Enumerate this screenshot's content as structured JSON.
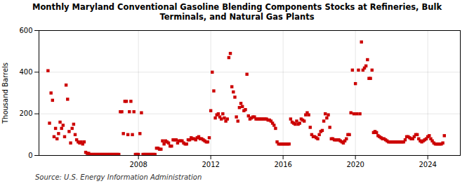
{
  "chart_data": {
    "type": "scatter",
    "title": "Monthly Maryland Conventional Gasoline Blending Components Stocks at Refineries, Bulk\nTerminals, and Natural Gas Plants",
    "ylabel": "Thousand Barrels",
    "source": "Source: U.S. Energy Information Administration",
    "color": "#cc0000",
    "marker": "square",
    "grid": true,
    "xlim": [
      2002.5,
      2025.8
    ],
    "xticks": [
      2008,
      2012,
      2016,
      2020,
      2024
    ],
    "ylim": [
      0,
      600
    ],
    "yticks": [
      0,
      200,
      400,
      600
    ],
    "x": [
      2003.0,
      2003.083,
      2003.167,
      2003.25,
      2003.333,
      2003.417,
      2003.5,
      2003.583,
      2003.667,
      2003.75,
      2003.833,
      2003.917,
      2004.0,
      2004.083,
      2004.167,
      2004.25,
      2004.333,
      2004.417,
      2004.5,
      2004.583,
      2004.667,
      2004.75,
      2004.833,
      2004.917,
      2005.0,
      2005.083,
      2005.167,
      2005.25,
      2005.333,
      2005.417,
      2005.5,
      2005.583,
      2005.667,
      2005.75,
      2005.833,
      2005.917,
      2006.0,
      2006.083,
      2006.167,
      2006.25,
      2006.333,
      2006.417,
      2006.5,
      2006.583,
      2006.667,
      2006.75,
      2006.833,
      2006.917,
      2007.0,
      2007.083,
      2007.167,
      2007.25,
      2007.333,
      2007.417,
      2007.5,
      2007.583,
      2007.667,
      2007.75,
      2007.833,
      2007.917,
      2008.0,
      2008.083,
      2008.167,
      2008.25,
      2008.333,
      2008.417,
      2008.5,
      2008.583,
      2008.667,
      2008.75,
      2008.833,
      2008.917,
      2009.0,
      2009.083,
      2009.167,
      2009.25,
      2009.333,
      2009.417,
      2009.5,
      2009.583,
      2009.667,
      2009.75,
      2009.833,
      2009.917,
      2010.0,
      2010.083,
      2010.167,
      2010.25,
      2010.333,
      2010.417,
      2010.5,
      2010.583,
      2010.667,
      2010.75,
      2010.833,
      2010.917,
      2011.0,
      2011.083,
      2011.167,
      2011.25,
      2011.333,
      2011.417,
      2011.5,
      2011.583,
      2011.667,
      2011.75,
      2011.833,
      2011.917,
      2012.0,
      2012.083,
      2012.167,
      2012.25,
      2012.333,
      2012.417,
      2012.5,
      2012.583,
      2012.667,
      2012.75,
      2012.833,
      2012.917,
      2013.0,
      2013.083,
      2013.167,
      2013.25,
      2013.333,
      2013.417,
      2013.5,
      2013.583,
      2013.667,
      2013.75,
      2013.833,
      2013.917,
      2014.0,
      2014.083,
      2014.167,
      2014.25,
      2014.333,
      2014.417,
      2014.5,
      2014.583,
      2014.667,
      2014.75,
      2014.833,
      2014.917,
      2015.0,
      2015.083,
      2015.167,
      2015.25,
      2015.333,
      2015.417,
      2015.5,
      2015.583,
      2015.667,
      2015.75,
      2015.833,
      2015.917,
      2016.0,
      2016.083,
      2016.167,
      2016.25,
      2016.333,
      2016.417,
      2016.5,
      2016.583,
      2016.667,
      2016.75,
      2016.833,
      2016.917,
      2017.0,
      2017.083,
      2017.167,
      2017.25,
      2017.333,
      2017.417,
      2017.5,
      2017.583,
      2017.667,
      2017.75,
      2017.833,
      2017.917,
      2018.0,
      2018.083,
      2018.167,
      2018.25,
      2018.333,
      2018.417,
      2018.5,
      2018.583,
      2018.667,
      2018.75,
      2018.833,
      2018.917,
      2019.0,
      2019.083,
      2019.167,
      2019.25,
      2019.333,
      2019.417,
      2019.5,
      2019.583,
      2019.667,
      2019.75,
      2019.833,
      2019.917,
      2020.0,
      2020.083,
      2020.167,
      2020.25,
      2020.333,
      2020.417,
      2020.5,
      2020.583,
      2020.667,
      2020.75,
      2020.833,
      2020.917,
      2021.0,
      2021.083,
      2021.167,
      2021.25,
      2021.333,
      2021.417,
      2021.5,
      2021.583,
      2021.667,
      2021.75,
      2021.833,
      2021.917,
      2022.0,
      2022.083,
      2022.167,
      2022.25,
      2022.333,
      2022.417,
      2022.5,
      2022.583,
      2022.667,
      2022.75,
      2022.833,
      2022.917,
      2023.0,
      2023.083,
      2023.167,
      2023.25,
      2023.333,
      2023.417,
      2023.5,
      2023.583,
      2023.667,
      2023.75,
      2023.833,
      2023.917,
      2024.0,
      2024.083,
      2024.167,
      2024.25,
      2024.333,
      2024.417,
      2024.5,
      2024.583,
      2024.667,
      2024.75,
      2024.833,
      2024.917
    ],
    "values": [
      407,
      155,
      300,
      265,
      90,
      130,
      80,
      105,
      160,
      130,
      145,
      90,
      338,
      270,
      115,
      60,
      130,
      150,
      100,
      75,
      65,
      60,
      65,
      55,
      65,
      15,
      10,
      10,
      5,
      5,
      5,
      5,
      5,
      5,
      5,
      5,
      5,
      5,
      5,
      5,
      5,
      5,
      5,
      5,
      5,
      5,
      5,
      5,
      210,
      210,
      105,
      260,
      260,
      100,
      210,
      260,
      100,
      210,
      5,
      5,
      5,
      105,
      205,
      5,
      5,
      5,
      5,
      5,
      5,
      5,
      5,
      5,
      35,
      35,
      30,
      30,
      70,
      55,
      70,
      65,
      60,
      45,
      45,
      75,
      75,
      75,
      60,
      70,
      70,
      70,
      60,
      55,
      55,
      75,
      75,
      85,
      80,
      80,
      75,
      85,
      90,
      80,
      80,
      75,
      70,
      65,
      65,
      85,
      215,
      400,
      310,
      180,
      195,
      200,
      185,
      175,
      200,
      180,
      165,
      175,
      470,
      490,
      330,
      305,
      280,
      185,
      165,
      230,
      250,
      235,
      215,
      220,
      390,
      190,
      175,
      180,
      185,
      185,
      175,
      175,
      175,
      175,
      175,
      175,
      175,
      175,
      170,
      170,
      165,
      155,
      145,
      130,
      65,
      55,
      55,
      55,
      55,
      55,
      55,
      55,
      55,
      175,
      160,
      155,
      150,
      165,
      150,
      155,
      175,
      170,
      165,
      195,
      205,
      195,
      135,
      100,
      90,
      90,
      85,
      80,
      100,
      115,
      120,
      165,
      200,
      180,
      195,
      135,
      80,
      80,
      75,
      75,
      75,
      75,
      70,
      65,
      60,
      70,
      80,
      100,
      100,
      205,
      410,
      200,
      345,
      200,
      410,
      200,
      545,
      410,
      420,
      430,
      460,
      370,
      370,
      410,
      110,
      115,
      110,
      95,
      90,
      85,
      80,
      80,
      75,
      70,
      65,
      65,
      65,
      65,
      65,
      65,
      65,
      65,
      65,
      65,
      65,
      75,
      90,
      90,
      85,
      80,
      80,
      90,
      100,
      100,
      80,
      70,
      65,
      70,
      75,
      80,
      90,
      95,
      80,
      70,
      60,
      55,
      55,
      55,
      55,
      55,
      60,
      95
    ]
  }
}
